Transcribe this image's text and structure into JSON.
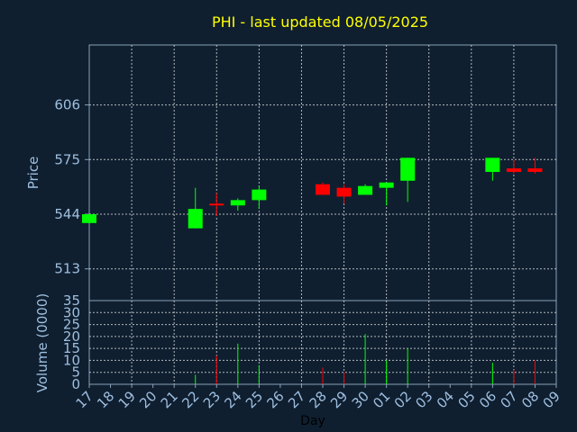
{
  "chart_data": [
    {
      "type": "candlestick",
      "title": "PHI - last updated 08/05/2025",
      "ylabel": "Price",
      "x_tick_labels": [
        "17",
        "18",
        "19",
        "20",
        "21",
        "22",
        "23",
        "24",
        "25",
        "26",
        "27",
        "28",
        "29",
        "30",
        "01",
        "02",
        "03",
        "04",
        "05",
        "06",
        "07",
        "08",
        "09"
      ],
      "y_ticks": [
        513,
        544,
        575,
        606
      ],
      "ylim": [
        495,
        640
      ],
      "grid": true,
      "colors": {
        "up": "#00ff00",
        "down": "#ff0000",
        "title": "#ffff00",
        "axis_text": "#9fbfdf",
        "background": "#0f1f30",
        "grid": "#dddddd"
      },
      "candles": [
        {
          "day": "17",
          "open": 539,
          "high": 544,
          "low": 539,
          "close": 544
        },
        {
          "day": "22",
          "open": 536,
          "high": 559,
          "low": 536,
          "close": 547
        },
        {
          "day": "23",
          "open": 550,
          "high": 556,
          "low": 543,
          "close": 549
        },
        {
          "day": "24",
          "open": 549,
          "high": 553,
          "low": 546,
          "close": 552
        },
        {
          "day": "25",
          "open": 552,
          "high": 560,
          "low": 547,
          "close": 558
        },
        {
          "day": "28",
          "open": 561,
          "high": 562,
          "low": 555,
          "close": 555
        },
        {
          "day": "29",
          "open": 559,
          "high": 561,
          "low": 550,
          "close": 554
        },
        {
          "day": "30",
          "open": 555,
          "high": 561,
          "low": 555,
          "close": 560
        },
        {
          "day": "01",
          "open": 559,
          "high": 562,
          "low": 549,
          "close": 562
        },
        {
          "day": "02",
          "open": 563,
          "high": 576,
          "low": 551,
          "close": 576
        },
        {
          "day": "06",
          "open": 568,
          "high": 576,
          "low": 563,
          "close": 576
        },
        {
          "day": "07",
          "open": 570,
          "high": 575,
          "low": 567,
          "close": 568
        },
        {
          "day": "08",
          "open": 570,
          "high": 576,
          "low": 567,
          "close": 568
        }
      ]
    },
    {
      "type": "bar",
      "ylabel": "Volume (0000)",
      "xlabel": "Day",
      "y_ticks": [
        0,
        5,
        10,
        15,
        20,
        25,
        30,
        35
      ],
      "ylim": [
        0,
        35
      ],
      "grid": true,
      "volumes": [
        {
          "day": "22",
          "value": 4,
          "dir": "up"
        },
        {
          "day": "23",
          "value": 12,
          "dir": "down"
        },
        {
          "day": "24",
          "value": 17,
          "dir": "up"
        },
        {
          "day": "25",
          "value": 8,
          "dir": "up"
        },
        {
          "day": "28",
          "value": 7,
          "dir": "down"
        },
        {
          "day": "29",
          "value": 5,
          "dir": "down"
        },
        {
          "day": "30",
          "value": 21,
          "dir": "up"
        },
        {
          "day": "01",
          "value": 10,
          "dir": "up"
        },
        {
          "day": "02",
          "value": 15,
          "dir": "up"
        },
        {
          "day": "06",
          "value": 9,
          "dir": "up"
        },
        {
          "day": "07",
          "value": 6,
          "dir": "down"
        },
        {
          "day": "08",
          "value": 10,
          "dir": "down"
        }
      ]
    }
  ]
}
